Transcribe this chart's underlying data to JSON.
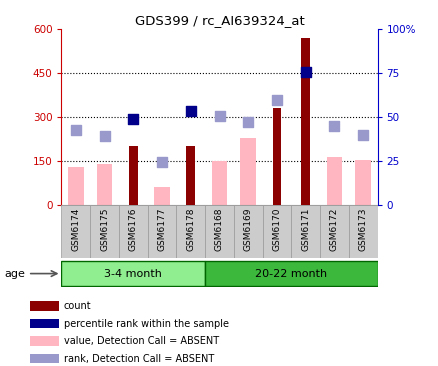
{
  "title": "GDS399 / rc_AI639324_at",
  "samples": [
    "GSM6174",
    "GSM6175",
    "GSM6176",
    "GSM6177",
    "GSM6178",
    "GSM6168",
    "GSM6169",
    "GSM6170",
    "GSM6171",
    "GSM6172",
    "GSM6173"
  ],
  "groups": [
    {
      "label": "3-4 month",
      "n": 5,
      "color": "#90EE90"
    },
    {
      "label": "20-22 month",
      "n": 6,
      "color": "#3CB83C"
    }
  ],
  "count_values": [
    null,
    null,
    200,
    null,
    200,
    null,
    null,
    330,
    570,
    null,
    null
  ],
  "count_color": "#8B0000",
  "absent_value_bars": [
    130,
    140,
    null,
    60,
    null,
    150,
    230,
    null,
    null,
    165,
    155
  ],
  "absent_value_color": "#FFB6C1",
  "percentile_rank_dots": [
    null,
    null,
    295,
    null,
    320,
    null,
    null,
    null,
    455,
    null,
    null
  ],
  "percentile_rank_color": "#00008B",
  "absent_rank_dots": [
    255,
    235,
    null,
    148,
    null,
    305,
    285,
    360,
    null,
    270,
    240
  ],
  "absent_rank_color": "#9999CC",
  "ylim_left": [
    0,
    600
  ],
  "ylim_right": [
    0,
    100
  ],
  "yticks_left": [
    0,
    150,
    300,
    450,
    600
  ],
  "ytick_labels_left": [
    "0",
    "150",
    "300",
    "450",
    "600"
  ],
  "yticks_right": [
    0,
    25,
    50,
    75,
    100
  ],
  "ytick_labels_right": [
    "0",
    "25",
    "50",
    "75",
    "100%"
  ],
  "hlines": [
    150,
    300,
    450
  ],
  "left_axis_color": "#CC0000",
  "right_axis_color": "#0000CC",
  "age_label": "age",
  "bar_width": 0.55,
  "dot_size": 55,
  "absent_dot_size": 45,
  "bg_color": "#CCCCCC",
  "legend_items": [
    {
      "label": "count",
      "color": "#8B0000"
    },
    {
      "label": "percentile rank within the sample",
      "color": "#00008B"
    },
    {
      "label": "value, Detection Call = ABSENT",
      "color": "#FFB6C1"
    },
    {
      "label": "rank, Detection Call = ABSENT",
      "color": "#9999CC"
    }
  ]
}
